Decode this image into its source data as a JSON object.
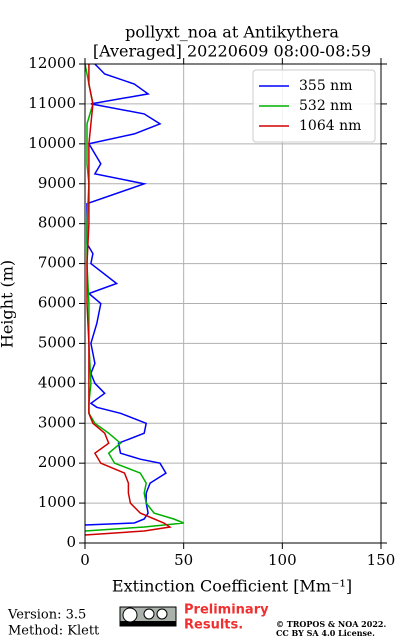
{
  "chart_data": {
    "type": "line",
    "title": "pollyxt_noa at Antikythera",
    "subtitle": "[Averaged] 20220609 08:00-08:59",
    "xlabel": "Extinction Coefficient [Mm⁻¹]",
    "ylabel": "Height (m)",
    "xlim": [
      0,
      150
    ],
    "ylim": [
      0,
      12000
    ],
    "xticks": [
      0,
      50,
      100,
      150
    ],
    "yticks": [
      0,
      1000,
      2000,
      3000,
      4000,
      5000,
      6000,
      7000,
      8000,
      9000,
      10000,
      11000,
      12000
    ],
    "grid": true,
    "legend": "upper right",
    "series": [
      {
        "name": "355 nm",
        "color": "#0000ff",
        "y": [
          450,
          500,
          600,
          750,
          1000,
          1250,
          1500,
          1750,
          2000,
          2100,
          2250,
          2500,
          2750,
          3000,
          3250,
          3400,
          3500,
          3750,
          4000,
          4250,
          4500,
          5000,
          5500,
          6000,
          6250,
          6500,
          7000,
          7250,
          7500,
          8000,
          8500,
          9000,
          9250,
          9500,
          10000,
          10250,
          10500,
          10750,
          11000,
          11250,
          11500,
          11750,
          12000
        ],
        "values": [
          0,
          25,
          30,
          32,
          31,
          31,
          33,
          41,
          38,
          28,
          18,
          17,
          30,
          31,
          18,
          6,
          3,
          10,
          5,
          3,
          5,
          3,
          6,
          8,
          2,
          16,
          3,
          4,
          1,
          1,
          1,
          30,
          5,
          8,
          2,
          25,
          38,
          30,
          3,
          32,
          25,
          10,
          5
        ]
      },
      {
        "name": "532 nm",
        "color": "#00b000",
        "y": [
          300,
          400,
          500,
          600,
          750,
          1000,
          1250,
          1500,
          1750,
          2000,
          2250,
          2500,
          2750,
          3000,
          3250,
          3500,
          4000,
          5000,
          6000,
          7000,
          8000,
          9000,
          9500,
          10000,
          10500,
          11000,
          11500,
          11750,
          12000
        ],
        "values": [
          0,
          30,
          50,
          45,
          35,
          31,
          30,
          31,
          28,
          15,
          12,
          18,
          12,
          5,
          2,
          2,
          3,
          2,
          2,
          1,
          1,
          2,
          1,
          1,
          1,
          4,
          2,
          1,
          0
        ]
      },
      {
        "name": "1064 nm",
        "color": "#d00000",
        "y": [
          200,
          300,
          400,
          500,
          750,
          1000,
          1250,
          1500,
          1750,
          2000,
          2250,
          2500,
          2750,
          3000,
          3250,
          3500,
          4000,
          5000,
          6000,
          7000,
          8000,
          9000,
          10000,
          10500,
          11000,
          11500,
          12000
        ],
        "values": [
          0,
          30,
          43,
          40,
          28,
          23,
          22,
          22,
          20,
          8,
          5,
          12,
          10,
          4,
          2,
          2,
          2,
          2,
          1,
          1,
          2,
          2,
          2,
          3,
          4,
          2,
          2
        ]
      }
    ]
  },
  "footer": {
    "version": "Version: 3.5",
    "method": "Method: Klett",
    "notice": [
      "Preliminary",
      "Results."
    ],
    "copyright": [
      "© TROPOS & NOA 2022.",
      "CC BY SA 4.0 License."
    ]
  }
}
